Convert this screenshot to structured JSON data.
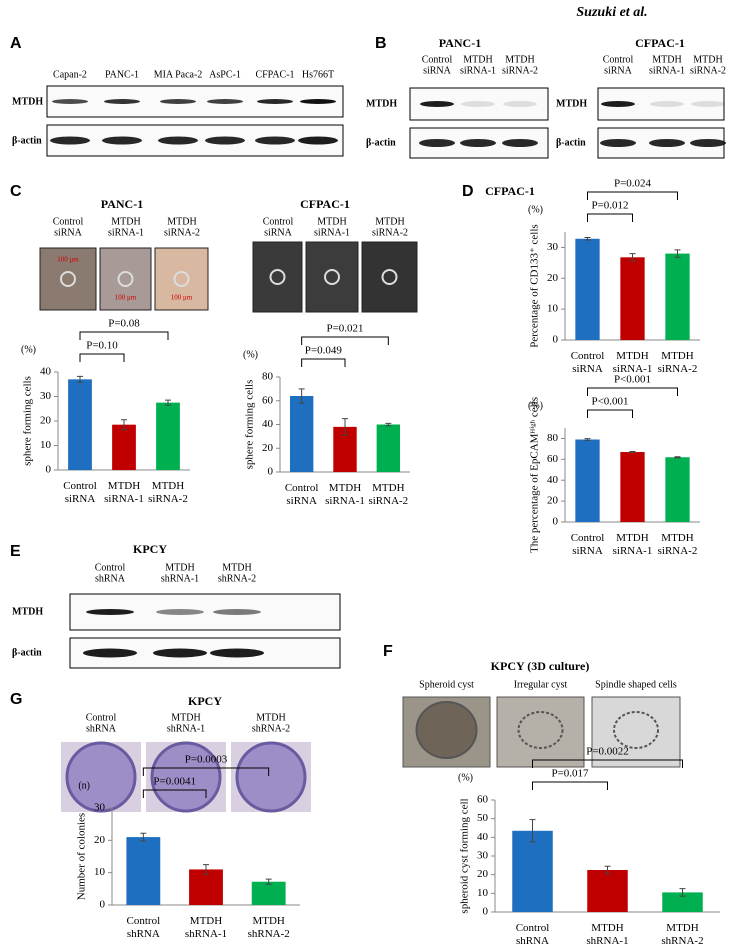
{
  "header": {
    "author": "Suzuki et al."
  },
  "panel_a": {
    "letter": "A",
    "lanes": [
      "Capan-2",
      "PANC-1",
      "MIA Paca-2",
      "AsPC-1",
      "CFPAC-1",
      "Hs766T"
    ],
    "rows": [
      "MTDH",
      "β-actin"
    ]
  },
  "panel_b": {
    "letter": "B",
    "blots": [
      {
        "title": "PANC-1",
        "lanes": [
          [
            "Control",
            "siRNA"
          ],
          [
            "MTDH",
            "siRNA-1"
          ],
          [
            "MTDH",
            "siRNA-2"
          ]
        ],
        "rows": [
          "MTDH",
          "β-actin"
        ]
      },
      {
        "title": "CFPAC-1",
        "lanes": [
          [
            "Control",
            "siRNA"
          ],
          [
            "MTDH",
            "siRNA-1"
          ],
          [
            "MTDH",
            "siRNA-2"
          ]
        ],
        "rows": [
          "MTDH",
          "β-actin"
        ]
      }
    ]
  },
  "panel_c": {
    "letter": "C",
    "scale": "100 μm",
    "image_sets": [
      {
        "title": "PANC-1",
        "lanes": [
          [
            "Control",
            "siRNA"
          ],
          [
            "MTDH",
            "siRNA-1"
          ],
          [
            "MTDH",
            "siRNA-2"
          ]
        ]
      },
      {
        "title": "CFPAC-1",
        "lanes": [
          [
            "Control",
            "siRNA"
          ],
          [
            "MTDH",
            "siRNA-1"
          ],
          [
            "MTDH",
            "siRNA-2"
          ]
        ]
      }
    ]
  },
  "panel_d": {
    "letter": "D",
    "title": "CFPAC-1"
  },
  "panel_e": {
    "letter": "E",
    "title": "KPCY",
    "lanes": [
      [
        "Control",
        "shRNA"
      ],
      [
        "MTDH",
        "shRNA-1"
      ],
      [
        "MTDH",
        "shRNA-2"
      ]
    ],
    "rows": [
      "MTDH",
      "β-actin"
    ]
  },
  "panel_f": {
    "letter": "F",
    "title": "KPCY (3D culture)",
    "images": [
      "Spheroid cyst",
      "Irregular cyst",
      "Spindle shaped cells"
    ]
  },
  "panel_g": {
    "letter": "G",
    "title": "KPCY",
    "lanes": [
      [
        "Control",
        "shRNA"
      ],
      [
        "MTDH",
        "shRNA-1"
      ],
      [
        "MTDH",
        "shRNA-2"
      ]
    ]
  },
  "chart_data": [
    {
      "type": "bar",
      "ylabel": "sphere forming cells",
      "unit": "(%)",
      "categories": [
        "Control siRNA",
        "MTDH siRNA-1",
        "MTDH siRNA-2"
      ],
      "values": [
        37,
        18.5,
        27.5
      ],
      "errors": [
        1.2,
        2,
        1
      ],
      "colors": [
        "#1f6fc0",
        "#c00000",
        "#00b050"
      ],
      "ylim": [
        0,
        40
      ],
      "yticks": [
        0,
        10,
        20,
        30,
        40
      ],
      "annotations": [
        "P=0.10",
        "P=0.08"
      ],
      "annotation_color": "#000000"
    },
    {
      "type": "bar",
      "ylabel": "sphere forming cells",
      "unit": "(%)",
      "categories": [
        "Control siRNA",
        "MTDH siRNA-1",
        "MTDH siRNA-2"
      ],
      "values": [
        64,
        38,
        40
      ],
      "errors": [
        6,
        7,
        1
      ],
      "colors": [
        "#1f6fc0",
        "#c00000",
        "#00b050"
      ],
      "ylim": [
        0,
        80
      ],
      "yticks": [
        0,
        20,
        40,
        60,
        80
      ],
      "annotations": [
        "P=0.049",
        "P=0.021"
      ],
      "annotation_color": "#e00000"
    },
    {
      "type": "bar",
      "ylabel": "Percentage of CD133⁺ cells",
      "unit": "(%)",
      "categories": [
        "Control siRNA",
        "MTDH siRNA-1",
        "MTDH siRNA-2"
      ],
      "values": [
        32.8,
        26.8,
        28
      ],
      "errors": [
        0.4,
        1.2,
        1.2
      ],
      "colors": [
        "#1f6fc0",
        "#c00000",
        "#00b050"
      ],
      "ylim": [
        0,
        35
      ],
      "yticks": [
        0,
        10,
        20,
        30
      ],
      "annotations": [
        "P=0.012",
        "P=0.024"
      ],
      "annotation_color": "#e00000"
    },
    {
      "type": "bar",
      "ylabel": "The percentage of EpCAMᴴⁱᵍʰ cells",
      "unit": "(%)",
      "categories": [
        "Control siRNA",
        "MTDH siRNA-1",
        "MTDH siRNA-2"
      ],
      "values": [
        79,
        67,
        62
      ],
      "errors": [
        0.8,
        0.5,
        0.5
      ],
      "colors": [
        "#1f6fc0",
        "#c00000",
        "#00b050"
      ],
      "ylim": [
        0,
        90
      ],
      "yticks": [
        0,
        20,
        40,
        60,
        80
      ],
      "annotations": [
        "P<0.001",
        "P<0.001"
      ],
      "annotation_color": "#e00000"
    },
    {
      "type": "bar",
      "ylabel": "Number of colonies",
      "unit": "(n)",
      "categories": [
        "Control shRNA",
        "MTDH shRNA-1",
        "MTDH shRNA-2"
      ],
      "values": [
        21,
        11,
        7.2
      ],
      "errors": [
        1.2,
        1.5,
        0.8
      ],
      "colors": [
        "#1f6fc0",
        "#c00000",
        "#00b050"
      ],
      "ylim": [
        0,
        30
      ],
      "yticks": [
        0,
        10,
        20,
        30
      ],
      "annotations": [
        "P=0.0041",
        "P=0.0003"
      ],
      "annotation_color": "#e00000"
    },
    {
      "type": "bar",
      "ylabel": "spheroid cyst forming cell",
      "unit": "(%)",
      "categories": [
        "Control shRNA",
        "MTDH shRNA-1",
        "MTDH shRNA-2"
      ],
      "values": [
        43.5,
        22.5,
        10.5
      ],
      "errors": [
        6,
        2,
        2
      ],
      "colors": [
        "#1f6fc0",
        "#c00000",
        "#00b050"
      ],
      "ylim": [
        0,
        60
      ],
      "yticks": [
        0,
        10,
        20,
        30,
        40,
        50,
        60
      ],
      "annotations": [
        "P=0.017",
        "P=0.0022"
      ],
      "annotation_color": "#e00000"
    }
  ]
}
